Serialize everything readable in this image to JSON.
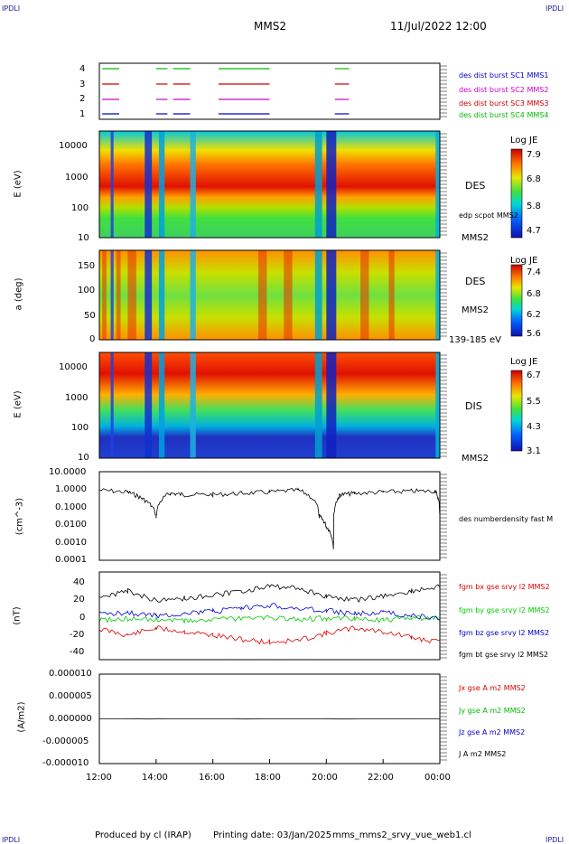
{
  "header": {
    "corner_label": "IPDLI",
    "title": "MMS2",
    "datetime": "11/Jul/2022 12:00"
  },
  "footer": {
    "produced_by": "Produced by cl (IRAP)",
    "printing_date": "Printing date: 03/Jan/2025",
    "filename": "mms_mms2_srvy_vue_web1.cl"
  },
  "time_axis": {
    "start_hour": 12,
    "end_hour": 24,
    "tick_labels": [
      "12:00",
      "14:00",
      "16:00",
      "18:00",
      "20:00",
      "22:00",
      "00:00"
    ]
  },
  "panels": {
    "burst": {
      "yticks": [
        "4",
        "3",
        "2",
        "1"
      ],
      "legend": [
        {
          "label": "des dist burst SC1 MMS1",
          "color": "#0000cc"
        },
        {
          "label": "des dist burst SC2 MMS2",
          "color": "#cc00cc"
        },
        {
          "label": "des dist burst SC3 MMS3",
          "color": "#cc0000"
        },
        {
          "label": "des dist burst SC4 MMS4",
          "color": "#00bb00"
        }
      ],
      "intervals_hours": [
        [
          12.1,
          12.7
        ],
        [
          14.0,
          14.4
        ],
        [
          14.6,
          15.2
        ],
        [
          16.2,
          18.0
        ],
        [
          20.3,
          20.8
        ]
      ]
    },
    "des_energy": {
      "ylabel": "E (eV)",
      "yticks": [
        "10000",
        "1000",
        "100",
        "10"
      ],
      "species": "DES",
      "overlay_label": "edp scpot MMS2",
      "sc_label": "MMS2",
      "colorbar": {
        "title": "Log JE",
        "ticks": [
          "7.9",
          "6.8",
          "5.8",
          "4.7"
        ]
      }
    },
    "des_pitch": {
      "ylabel": "a (deg)",
      "yticks": [
        "150",
        "100",
        "50",
        "0"
      ],
      "species": "DES",
      "sc_label": "MMS2",
      "energy_range": "139-185 eV",
      "colorbar": {
        "title": "Log JE",
        "ticks": [
          "7.4",
          "6.8",
          "6.2",
          "5.6"
        ]
      }
    },
    "dis_energy": {
      "ylabel": "E (eV)",
      "yticks": [
        "10000",
        "1000",
        "100",
        "10"
      ],
      "species": "DIS",
      "sc_label": "MMS2",
      "colorbar": {
        "title": "Log JE",
        "ticks": [
          "6.7",
          "5.5",
          "4.3",
          "3.1"
        ]
      }
    },
    "density": {
      "ylabel": "(cm^-3)",
      "yticks": [
        "10.0000",
        "1.0000",
        "0.1000",
        "0.0100",
        "0.0010",
        "0.0001"
      ],
      "legend": "des numberdensity fast M"
    },
    "bfield": {
      "ylabel": "(nT)",
      "yticks": [
        "40",
        "20",
        "0",
        "-20",
        "-40"
      ],
      "legend": [
        {
          "label": "fgm bx gse srvy l2 MMS2",
          "color": "#dd0000"
        },
        {
          "label": "fgm by gse srvy l2 MMS2",
          "color": "#00cc00"
        },
        {
          "label": "fgm bz gse srvy l2 MMS2",
          "color": "#0000cc"
        },
        {
          "label": "fgm bt gse srvy l2 MMS2",
          "color": "#000000"
        }
      ]
    },
    "current": {
      "ylabel": "(A/m2)",
      "yticks": [
        "0.000010",
        "0.000005",
        "0.000000",
        "-0.000005",
        "-0.000010"
      ],
      "legend": [
        {
          "label": "Jx gse A m2 MMS2",
          "color": "#dd0000"
        },
        {
          "label": "Jy gse A m2 MMS2",
          "color": "#00bb00"
        },
        {
          "label": "Jz gse A m2 MMS2",
          "color": "#0000cc"
        },
        {
          "label": "J A m2 MMS2",
          "color": "#000000"
        }
      ]
    }
  },
  "chart_data": [
    {
      "type": "line",
      "title": "des numberdensity fast M",
      "ylabel": "(cm^-3)",
      "yscale": "log",
      "ylim": [
        0.0001,
        10
      ],
      "x": [
        "12:00",
        "13:00",
        "13:30",
        "14:00",
        "14:30",
        "15:00",
        "16:00",
        "17:00",
        "18:00",
        "19:00",
        "19:45",
        "20:00",
        "20:15",
        "20:30",
        "21:00",
        "22:00",
        "23:00",
        "23:50",
        "00:00"
      ],
      "values": [
        0.9,
        0.7,
        0.3,
        0.03,
        0.6,
        0.5,
        0.5,
        0.6,
        0.7,
        0.9,
        0.03,
        0.008,
        0.0005,
        0.5,
        0.6,
        0.7,
        0.8,
        0.8,
        0.03
      ]
    },
    {
      "type": "line",
      "title": "fgm gse srvy l2 MMS2",
      "ylabel": "(nT)",
      "ylim": [
        -50,
        50
      ],
      "x": [
        "12:00",
        "13:00",
        "14:00",
        "15:00",
        "16:00",
        "17:00",
        "18:00",
        "19:00",
        "20:00",
        "21:00",
        "22:00",
        "23:00",
        "00:00"
      ],
      "series": [
        {
          "name": "fgm bx gse srvy l2 MMS2",
          "values": [
            -15,
            -22,
            -14,
            -18,
            -22,
            -27,
            -30,
            -28,
            -20,
            -14,
            -18,
            -25,
            -30
          ]
        },
        {
          "name": "fgm by gse srvy l2 MMS2",
          "values": [
            -5,
            -3,
            -4,
            -6,
            -4,
            -3,
            -2,
            -4,
            -3,
            -3,
            -5,
            -2,
            -3
          ]
        },
        {
          "name": "fgm bz gse srvy l2 MMS2",
          "values": [
            2,
            4,
            0,
            3,
            5,
            8,
            12,
            8,
            6,
            2,
            4,
            0,
            -3
          ]
        },
        {
          "name": "fgm bt gse srvy l2 MMS2",
          "values": [
            20,
            28,
            18,
            20,
            23,
            28,
            33,
            32,
            22,
            18,
            22,
            28,
            33
          ]
        }
      ]
    },
    {
      "type": "line",
      "title": "J A m2 MMS2",
      "ylabel": "(A/m2)",
      "ylim": [
        -1e-05,
        1e-05
      ],
      "x": [
        "12:00",
        "00:00"
      ],
      "values": [
        0,
        0
      ]
    }
  ]
}
